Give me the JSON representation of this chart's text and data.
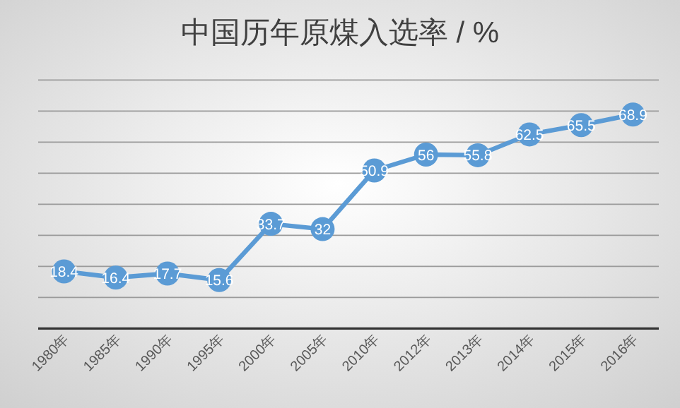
{
  "chart_data": {
    "type": "line",
    "title": "中国历年原煤入选率 / %",
    "categories": [
      "1980年",
      "1985年",
      "1990年",
      "1995年",
      "2000年",
      "2005年",
      "2010年",
      "2012年",
      "2013年",
      "2014年",
      "2015年",
      "2016年"
    ],
    "values": [
      18.4,
      16.4,
      17.7,
      15.6,
      33.7,
      32,
      50.9,
      56,
      55.8,
      62.5,
      65.5,
      68.9
    ],
    "color": "#5b9bd5",
    "marker": "circle",
    "data_labels": true,
    "grid": "y",
    "tick_labels": "x",
    "ylim": [
      0,
      80
    ],
    "yticks": [
      {
        "value": 0,
        "label": null
      },
      {
        "value": 10,
        "label": null
      },
      {
        "value": 20,
        "label": null
      },
      {
        "value": 30,
        "label": null
      },
      {
        "value": 40,
        "label": null
      },
      {
        "value": 50,
        "label": null
      },
      {
        "value": 60,
        "label": null
      },
      {
        "value": 70,
        "label": null
      },
      {
        "value": 80,
        "label": null
      }
    ]
  }
}
